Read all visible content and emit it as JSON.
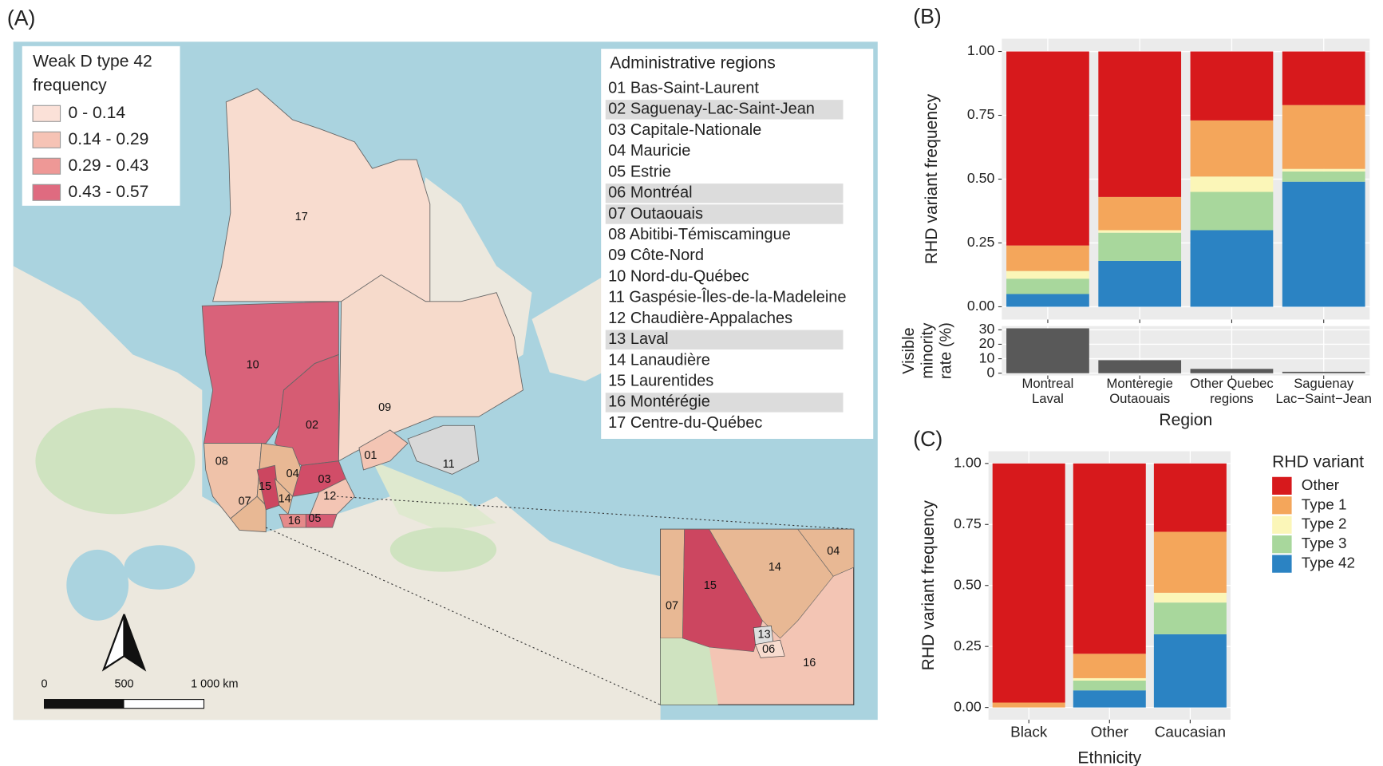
{
  "map": {
    "panel_label": "(A)",
    "legend": {
      "title": [
        "Weak D type 42",
        "frequency"
      ],
      "entries": [
        {
          "label": "0 - 0.14",
          "color": "#fbe1d8"
        },
        {
          "label": "0.14 - 0.29",
          "color": "#f6c3b5"
        },
        {
          "label": "0.29 - 0.43",
          "color": "#ee9896"
        },
        {
          "label": "0.43 - 0.57",
          "color": "#df6b80"
        }
      ]
    },
    "regions_box": {
      "title": "Administrative regions",
      "items": [
        {
          "label": "01 Bas-Saint-Laurent",
          "highlight": false
        },
        {
          "label": "02 Saguenay-Lac-Saint-Jean",
          "highlight": true
        },
        {
          "label": "03 Capitale-Nationale",
          "highlight": false
        },
        {
          "label": "04 Mauricie",
          "highlight": false
        },
        {
          "label": "05 Estrie",
          "highlight": false
        },
        {
          "label": "06 Montréal",
          "highlight": true
        },
        {
          "label": "07 Outaouais",
          "highlight": true
        },
        {
          "label": "08 Abitibi-Témiscamingue",
          "highlight": false
        },
        {
          "label": "09 Côte-Nord",
          "highlight": false
        },
        {
          "label": "10 Nord-du-Québec",
          "highlight": false
        },
        {
          "label": "11 Gaspésie-Îles-de-la-Madeleine",
          "highlight": false
        },
        {
          "label": "12 Chaudière-Appalaches",
          "highlight": false
        },
        {
          "label": "13 Laval",
          "highlight": true
        },
        {
          "label": "14 Lanaudière",
          "highlight": false
        },
        {
          "label": "15 Laurentides",
          "highlight": false
        },
        {
          "label": "16 Montérégie",
          "highlight": true
        },
        {
          "label": "17 Centre-du-Québec",
          "highlight": false
        }
      ]
    },
    "region_labels": [
      "17",
      "10",
      "09",
      "02",
      "08",
      "04",
      "03",
      "01",
      "11",
      "12",
      "07",
      "15",
      "14",
      "16",
      "05"
    ],
    "inset_labels": [
      "15",
      "14",
      "04",
      "07",
      "13",
      "06",
      "16"
    ],
    "scale_labels": [
      "0",
      "500",
      "1 000 km"
    ]
  },
  "chart_data": [
    {
      "type": "stacked_bar",
      "panel_label": "(B)",
      "ylabel": "RHD variant frequency",
      "ylim": [
        -0.05,
        1.05
      ],
      "yticks": [
        {
          "value": 0,
          "label": "0.00"
        },
        {
          "value": 0.25,
          "label": "0.25"
        },
        {
          "value": 0.5,
          "label": "0.50"
        },
        {
          "value": 0.75,
          "label": "0.75"
        },
        {
          "value": 1,
          "label": "1.00"
        }
      ],
      "grid": true,
      "series": [
        {
          "color": "#d7191c",
          "values": [
            0.76,
            0.57,
            0.27,
            0.21
          ]
        },
        {
          "color": "#f4a65b",
          "values": [
            0.1,
            0.13,
            0.22,
            0.25
          ]
        },
        {
          "color": "#fbf6b8",
          "values": [
            0.03,
            0.01,
            0.06,
            0.01
          ]
        },
        {
          "color": "#a8d79c",
          "values": [
            0.06,
            0.11,
            0.15,
            0.04
          ]
        },
        {
          "color": "#2b83c3",
          "values": [
            0.05,
            0.18,
            0.3,
            0.49
          ]
        }
      ]
    },
    {
      "type": "bar",
      "ylabel": [
        "Visible",
        "minority",
        "rate (%)"
      ],
      "xlabel": "Region",
      "categories": [
        [
          "Montreal",
          "Laval"
        ],
        [
          "Monteregie",
          "Outaouais"
        ],
        [
          "Other Quebec",
          "regions"
        ],
        [
          "Saguenay",
          "Lac−Saint−Jean"
        ]
      ],
      "values": [
        31,
        9,
        3,
        1
      ],
      "color": "#595959",
      "ylim": [
        -1.55,
        32.55
      ],
      "yticks": [
        0,
        10,
        20,
        30
      ],
      "grid": true
    },
    {
      "type": "stacked_bar",
      "panel_label": "(C)",
      "ylabel": "RHD variant frequency",
      "xlabel": "Ethnicity",
      "categories": [
        "Black",
        "Other",
        "Caucasian"
      ],
      "ylim": [
        -0.05,
        1.05
      ],
      "yticks": [
        {
          "value": 0,
          "label": "0.00"
        },
        {
          "value": 0.25,
          "label": "0.25"
        },
        {
          "value": 0.5,
          "label": "0.50"
        },
        {
          "value": 0.75,
          "label": "0.75"
        },
        {
          "value": 1,
          "label": "1.00"
        }
      ],
      "grid": true,
      "legend_title": "RHD variant",
      "series": [
        {
          "name": "Other",
          "color": "#d7191c",
          "values": [
            0.98,
            0.78,
            0.28
          ]
        },
        {
          "name": "Type 1",
          "color": "#f4a65b",
          "values": [
            0.02,
            0.1,
            0.25
          ]
        },
        {
          "name": "Type 2",
          "color": "#fbf6b8",
          "values": [
            0,
            0.01,
            0.04
          ]
        },
        {
          "name": "Type 3",
          "color": "#a8d79c",
          "values": [
            0,
            0.04,
            0.13
          ]
        },
        {
          "name": "Type 42",
          "color": "#2b83c3",
          "values": [
            0,
            0.07,
            0.3
          ]
        }
      ]
    }
  ]
}
